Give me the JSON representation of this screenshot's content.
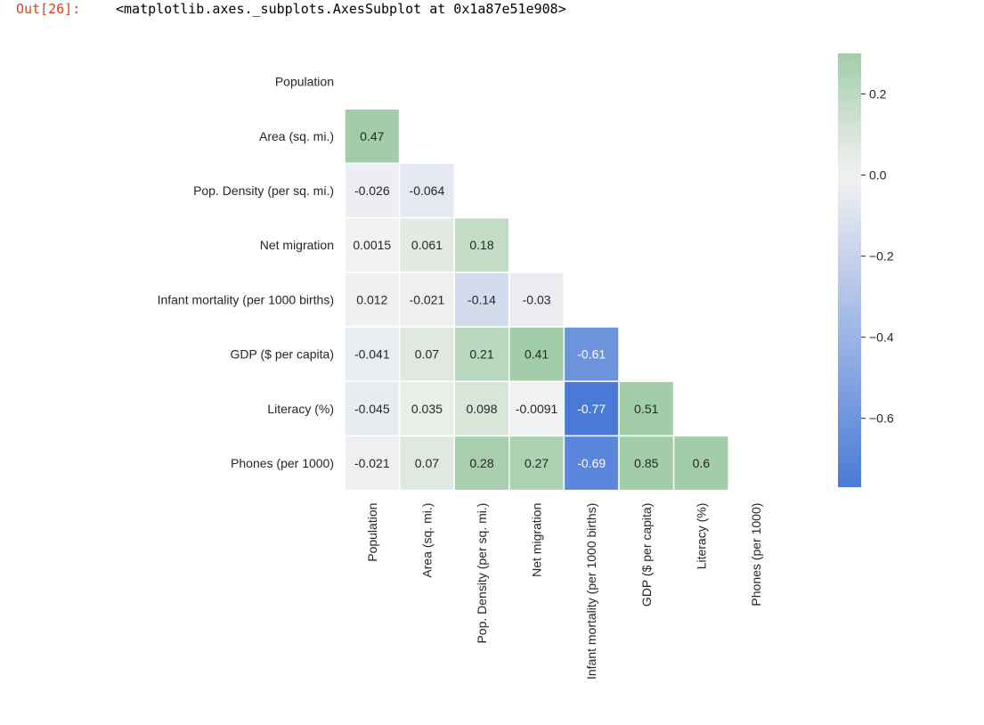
{
  "output": {
    "prompt": "Out[26]:",
    "text": "<matplotlib.axes._subplots.AxesSubplot at 0x1a87e51e908>"
  },
  "chart_data": {
    "type": "heatmap",
    "title": "",
    "rows": [
      "Population",
      "Area (sq. mi.)",
      "Pop. Density (per sq. mi.)",
      "Net migration",
      "Infant mortality (per 1000 births)",
      "GDP ($ per capita)",
      "Literacy (%)",
      "Phones (per 1000)"
    ],
    "columns": [
      "Population",
      "Area (sq. mi.)",
      "Pop. Density (per sq. mi.)",
      "Net migration",
      "Infant mortality (per 1000 births)",
      "GDP ($ per capita)",
      "Literacy (%)",
      "Phones (per 1000)"
    ],
    "mask": "upper triangle including diagonal",
    "cells": [
      {
        "row": 1,
        "col": 0,
        "value": 0.47,
        "label": "0.47"
      },
      {
        "row": 2,
        "col": 0,
        "value": -0.026,
        "label": "-0.026"
      },
      {
        "row": 2,
        "col": 1,
        "value": -0.064,
        "label": "-0.064"
      },
      {
        "row": 3,
        "col": 0,
        "value": 0.0015,
        "label": "0.0015"
      },
      {
        "row": 3,
        "col": 1,
        "value": 0.061,
        "label": "0.061"
      },
      {
        "row": 3,
        "col": 2,
        "value": 0.18,
        "label": "0.18"
      },
      {
        "row": 4,
        "col": 0,
        "value": 0.012,
        "label": "0.012"
      },
      {
        "row": 4,
        "col": 1,
        "value": -0.021,
        "label": "-0.021"
      },
      {
        "row": 4,
        "col": 2,
        "value": -0.14,
        "label": "-0.14"
      },
      {
        "row": 4,
        "col": 3,
        "value": -0.03,
        "label": "-0.03"
      },
      {
        "row": 5,
        "col": 0,
        "value": -0.041,
        "label": "-0.041"
      },
      {
        "row": 5,
        "col": 1,
        "value": 0.07,
        "label": "0.07"
      },
      {
        "row": 5,
        "col": 2,
        "value": 0.21,
        "label": "0.21"
      },
      {
        "row": 5,
        "col": 3,
        "value": 0.41,
        "label": "0.41"
      },
      {
        "row": 5,
        "col": 4,
        "value": -0.61,
        "label": "-0.61"
      },
      {
        "row": 6,
        "col": 0,
        "value": -0.045,
        "label": "-0.045"
      },
      {
        "row": 6,
        "col": 1,
        "value": 0.035,
        "label": "0.035"
      },
      {
        "row": 6,
        "col": 2,
        "value": 0.098,
        "label": "0.098"
      },
      {
        "row": 6,
        "col": 3,
        "value": -0.0091,
        "label": "-0.0091"
      },
      {
        "row": 6,
        "col": 4,
        "value": -0.77,
        "label": "-0.77"
      },
      {
        "row": 6,
        "col": 5,
        "value": 0.51,
        "label": "0.51"
      },
      {
        "row": 7,
        "col": 0,
        "value": -0.021,
        "label": "-0.021"
      },
      {
        "row": 7,
        "col": 1,
        "value": 0.07,
        "label": "0.07"
      },
      {
        "row": 7,
        "col": 2,
        "value": 0.28,
        "label": "0.28"
      },
      {
        "row": 7,
        "col": 3,
        "value": 0.27,
        "label": "0.27"
      },
      {
        "row": 7,
        "col": 4,
        "value": -0.69,
        "label": "-0.69"
      },
      {
        "row": 7,
        "col": 5,
        "value": 0.85,
        "label": "0.85"
      },
      {
        "row": 7,
        "col": 6,
        "value": 0.6,
        "label": "0.6"
      }
    ],
    "colorbar": {
      "vmin": -0.77,
      "vmax": 0.3,
      "ticks": [
        0.2,
        0.0,
        -0.2,
        -0.4,
        -0.6
      ],
      "tick_labels": [
        "0.2",
        "0.0",
        "−0.2",
        "−0.4",
        "−0.6"
      ],
      "color_low": "#4a7ad8",
      "color_mid": "#f2f2f2",
      "color_high": "#a2cda9"
    },
    "grid": false,
    "legend": "colorbar right"
  }
}
